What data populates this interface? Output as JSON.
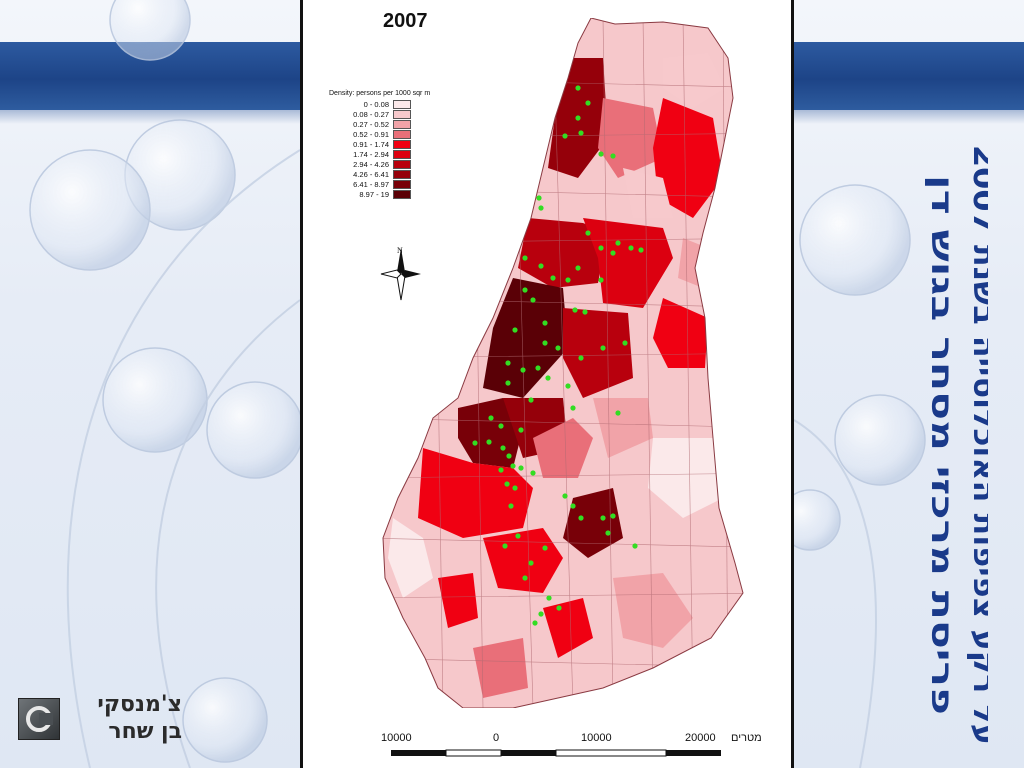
{
  "slide": {
    "title_line1": "פריסת מרכזי מסחר בגוש דן",
    "title_line2": "על רקע צפיפות האוכלוסייה בשנת 2007",
    "title_color": "#1a3a8a",
    "band_color": "#1d4487"
  },
  "logo": {
    "line1": "צ'מנסקי",
    "line2": "בן שחר"
  },
  "map": {
    "year": "2007",
    "north_label": "N",
    "legend": {
      "title": "Density: persons per 1000 sqr m",
      "classes": [
        {
          "range": "0 - 0.08",
          "color": "#fbe9ea"
        },
        {
          "range": "0.08 - 0.27",
          "color": "#f7c9cc"
        },
        {
          "range": "0.27 - 0.52",
          "color": "#f1a3a8"
        },
        {
          "range": "0.52 - 0.91",
          "color": "#e96f79"
        },
        {
          "range": "0.91 - 1.74",
          "color": "#f00012"
        },
        {
          "range": "1.74 - 2.94",
          "color": "#dc0010"
        },
        {
          "range": "2.94 - 4.26",
          "color": "#b8000d"
        },
        {
          "range": "4.26 - 6.41",
          "color": "#95000a"
        },
        {
          "range": "6.41 - 8.97",
          "color": "#780008"
        },
        {
          "range": "8.97 - 19",
          "color": "#5a0006"
        }
      ]
    },
    "center_marker_color": "#33dd22",
    "scale": {
      "unit": "מטרים",
      "labels": [
        "10000",
        "0",
        "10000",
        "20000"
      ]
    }
  }
}
